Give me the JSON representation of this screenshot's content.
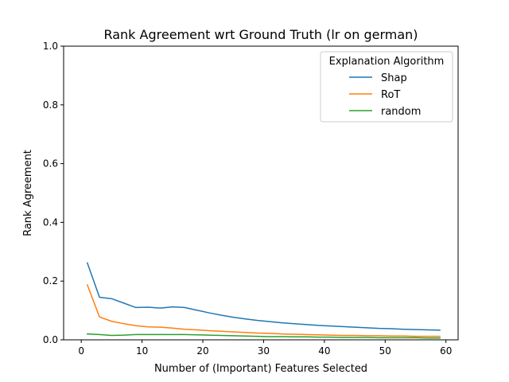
{
  "chart_data": {
    "type": "line",
    "title": "Rank Agreement wrt Ground Truth (lr on german)",
    "xlabel": "Number of (Important) Features Selected",
    "ylabel": "Rank Agreement",
    "xlim": [
      -2.9,
      62.0
    ],
    "ylim": [
      0,
      1.0
    ],
    "xticks": [
      0,
      10,
      20,
      30,
      40,
      50,
      60
    ],
    "xtick_labels": [
      "0",
      "10",
      "20",
      "30",
      "40",
      "50",
      "60"
    ],
    "yticks": [
      0,
      0.2,
      0.4,
      0.6,
      0.8,
      1.0
    ],
    "ytick_labels": [
      "0.0",
      "0.2",
      "0.4",
      "0.6",
      "0.8",
      "1.0"
    ],
    "grid": false,
    "legend": {
      "title": "Explanation Algorithm",
      "position": "top-right"
    },
    "x": [
      1,
      3,
      5,
      7,
      9,
      11,
      13,
      15,
      17,
      19,
      21,
      23,
      25,
      27,
      29,
      31,
      33,
      35,
      37,
      39,
      41,
      43,
      45,
      47,
      49,
      51,
      53,
      55,
      57,
      59
    ],
    "series": [
      {
        "name": "Shap",
        "color": "#1f77b4",
        "values": [
          0.262,
          0.145,
          0.14,
          0.125,
          0.11,
          0.111,
          0.108,
          0.112,
          0.11,
          0.101,
          0.092,
          0.084,
          0.077,
          0.071,
          0.066,
          0.062,
          0.058,
          0.055,
          0.052,
          0.049,
          0.047,
          0.045,
          0.043,
          0.041,
          0.039,
          0.038,
          0.036,
          0.035,
          0.034,
          0.033
        ]
      },
      {
        "name": "RoT",
        "color": "#ff7f0e",
        "values": [
          0.187,
          0.078,
          0.063,
          0.055,
          0.048,
          0.044,
          0.043,
          0.04,
          0.036,
          0.034,
          0.031,
          0.029,
          0.027,
          0.025,
          0.023,
          0.022,
          0.02,
          0.019,
          0.018,
          0.017,
          0.016,
          0.015,
          0.015,
          0.014,
          0.014,
          0.013,
          0.013,
          0.012,
          0.012,
          0.012
        ]
      },
      {
        "name": "random",
        "color": "#2ca02c",
        "values": [
          0.02,
          0.018,
          0.015,
          0.016,
          0.018,
          0.018,
          0.018,
          0.018,
          0.018,
          0.017,
          0.016,
          0.015,
          0.014,
          0.013,
          0.012,
          0.011,
          0.011,
          0.01,
          0.01,
          0.009,
          0.009,
          0.008,
          0.008,
          0.008,
          0.007,
          0.007,
          0.007,
          0.007,
          0.006,
          0.006
        ]
      }
    ]
  }
}
